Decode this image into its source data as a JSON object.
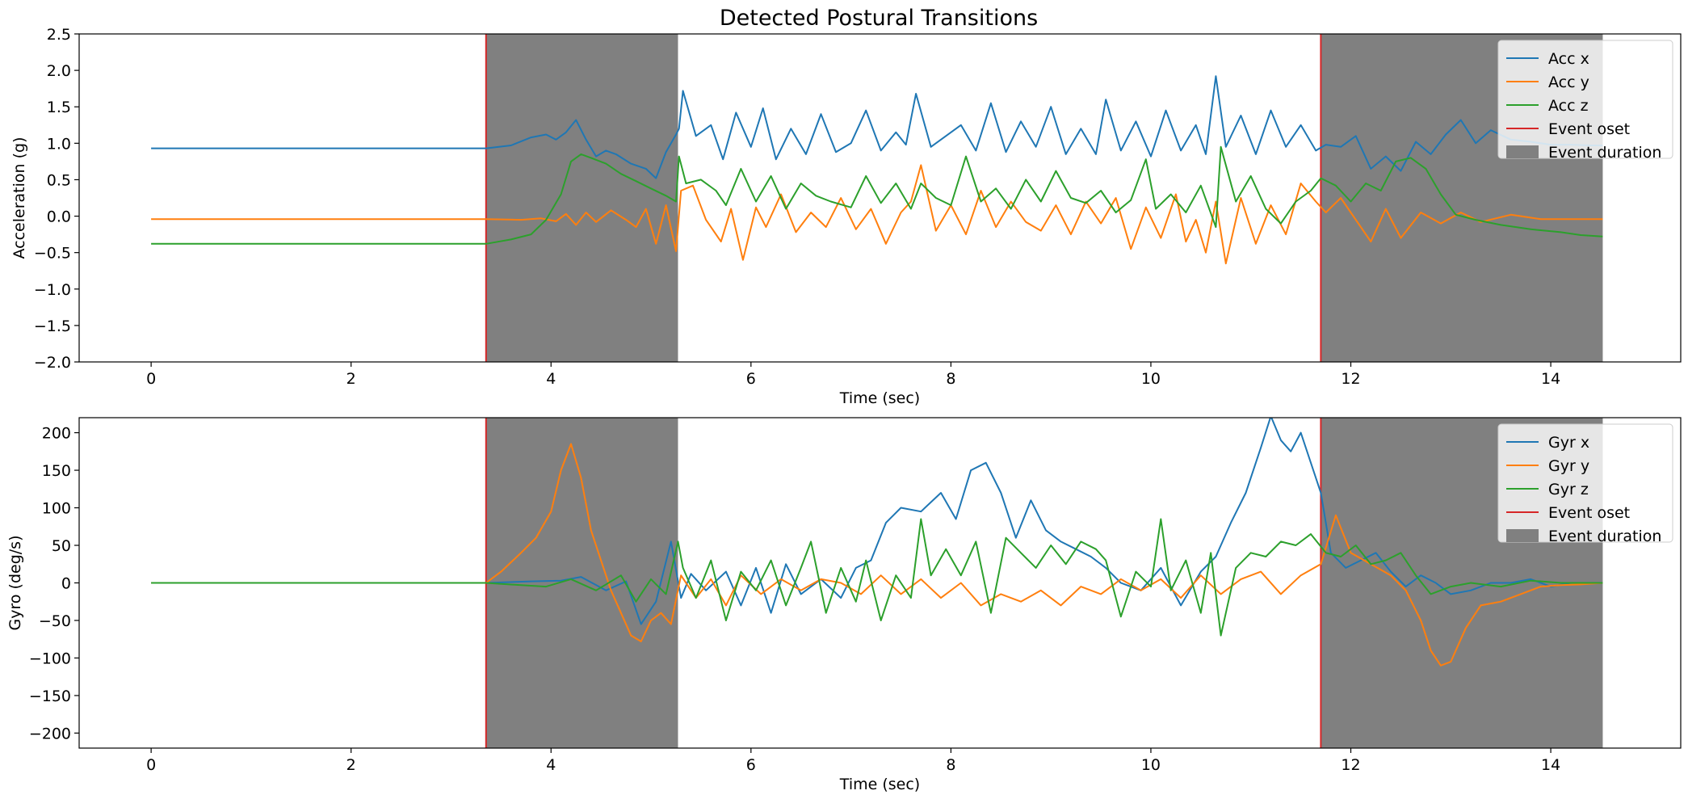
{
  "figure": {
    "title": "Detected Postural Transitions"
  },
  "colors": {
    "x": "#1f77b4",
    "y": "#ff7f0e",
    "z": "#2ca02c",
    "onset": "#d62728",
    "duration": "#808080"
  },
  "chart_data": [
    {
      "type": "line",
      "title": "Detected Postural Transitions",
      "xlabel": "Time (sec)",
      "ylabel": "Acceleration (g)",
      "xlim": [
        -0.72,
        15.3
      ],
      "ylim": [
        -2.0,
        2.5
      ],
      "xticks": [
        0,
        2,
        4,
        6,
        8,
        10,
        12,
        14
      ],
      "xtick_labels": [
        "0",
        "2",
        "4",
        "6",
        "8",
        "10",
        "12",
        "14"
      ],
      "yticks": [
        -2.0,
        -1.5,
        -1.0,
        -0.5,
        0.0,
        0.5,
        1.0,
        1.5,
        2.0,
        2.5
      ],
      "ytick_labels": [
        "−2.0",
        "−1.5",
        "−1.0",
        "−0.5",
        "0.0",
        "0.5",
        "1.0",
        "1.5",
        "2.0",
        "2.5"
      ],
      "grid": false,
      "legend_position": "top-right",
      "legend": [
        "Acc x",
        "Acc y",
        "Acc z",
        "Event oset",
        "Event duration"
      ],
      "events": [
        {
          "onset": 3.35,
          "end": 5.27
        },
        {
          "onset": 11.7,
          "end": 14.52
        }
      ],
      "series": [
        {
          "name": "Acc x",
          "x": [
            0,
            1,
            2,
            3,
            3.35,
            3.6,
            3.8,
            3.95,
            4.05,
            4.15,
            4.25,
            4.35,
            4.45,
            4.55,
            4.65,
            4.8,
            4.95,
            5.05,
            5.15,
            5.25,
            5.28,
            5.32,
            5.45,
            5.6,
            5.72,
            5.85,
            6.0,
            6.12,
            6.25,
            6.4,
            6.55,
            6.7,
            6.85,
            7.0,
            7.15,
            7.3,
            7.45,
            7.55,
            7.65,
            7.8,
            7.95,
            8.1,
            8.25,
            8.4,
            8.55,
            8.7,
            8.85,
            9.0,
            9.15,
            9.3,
            9.45,
            9.55,
            9.7,
            9.85,
            10.0,
            10.15,
            10.3,
            10.45,
            10.55,
            10.65,
            10.75,
            10.9,
            11.05,
            11.2,
            11.35,
            11.5,
            11.65,
            11.75,
            11.9,
            12.05,
            12.2,
            12.35,
            12.5,
            12.65,
            12.8,
            12.95,
            13.1,
            13.25,
            13.4,
            13.6,
            13.8,
            14.0,
            14.2,
            14.4,
            14.52
          ],
          "y": [
            0.93,
            0.93,
            0.93,
            0.93,
            0.93,
            0.97,
            1.08,
            1.12,
            1.05,
            1.15,
            1.32,
            1.05,
            0.82,
            0.9,
            0.85,
            0.72,
            0.65,
            0.52,
            0.88,
            1.12,
            1.2,
            1.72,
            1.1,
            1.25,
            0.78,
            1.42,
            0.95,
            1.48,
            0.78,
            1.2,
            0.85,
            1.4,
            0.88,
            1.0,
            1.45,
            0.9,
            1.15,
            0.98,
            1.68,
            0.95,
            1.1,
            1.25,
            0.9,
            1.55,
            0.88,
            1.3,
            0.95,
            1.5,
            0.85,
            1.2,
            0.85,
            1.6,
            0.9,
            1.3,
            0.82,
            1.45,
            0.9,
            1.25,
            0.85,
            1.92,
            0.95,
            1.38,
            0.85,
            1.45,
            0.95,
            1.25,
            0.9,
            0.98,
            0.95,
            1.1,
            0.65,
            0.82,
            0.62,
            1.02,
            0.85,
            1.12,
            1.32,
            1.0,
            1.18,
            1.05,
            1.02,
            0.98,
            0.98,
            0.97,
            0.97
          ]
        },
        {
          "name": "Acc y",
          "x": [
            0,
            1,
            2,
            3,
            3.35,
            3.7,
            3.9,
            4.05,
            4.15,
            4.25,
            4.35,
            4.45,
            4.6,
            4.75,
            4.85,
            4.95,
            5.05,
            5.15,
            5.25,
            5.3,
            5.42,
            5.55,
            5.7,
            5.8,
            5.92,
            6.05,
            6.15,
            6.3,
            6.45,
            6.6,
            6.75,
            6.9,
            7.05,
            7.2,
            7.35,
            7.5,
            7.6,
            7.7,
            7.85,
            8.0,
            8.15,
            8.3,
            8.45,
            8.6,
            8.75,
            8.9,
            9.05,
            9.2,
            9.35,
            9.5,
            9.65,
            9.8,
            9.95,
            10.1,
            10.25,
            10.35,
            10.45,
            10.55,
            10.65,
            10.75,
            10.9,
            11.05,
            11.2,
            11.35,
            11.5,
            11.65,
            11.75,
            11.9,
            12.05,
            12.2,
            12.35,
            12.5,
            12.7,
            12.9,
            13.1,
            13.3,
            13.6,
            13.9,
            14.2,
            14.52
          ],
          "y": [
            -0.04,
            -0.04,
            -0.04,
            -0.04,
            -0.04,
            -0.05,
            -0.03,
            -0.07,
            0.03,
            -0.12,
            0.05,
            -0.08,
            0.08,
            -0.05,
            -0.15,
            0.1,
            -0.38,
            0.15,
            -0.48,
            0.35,
            0.42,
            -0.05,
            -0.35,
            0.1,
            -0.6,
            0.12,
            -0.15,
            0.3,
            -0.22,
            0.05,
            -0.15,
            0.25,
            -0.18,
            0.1,
            -0.38,
            0.05,
            0.2,
            0.7,
            -0.2,
            0.15,
            -0.25,
            0.35,
            -0.15,
            0.2,
            -0.08,
            -0.2,
            0.15,
            -0.25,
            0.2,
            -0.1,
            0.25,
            -0.45,
            0.12,
            -0.3,
            0.3,
            -0.35,
            -0.05,
            -0.5,
            0.2,
            -0.65,
            0.25,
            -0.38,
            0.15,
            -0.25,
            0.45,
            0.2,
            0.05,
            0.25,
            -0.05,
            -0.35,
            0.1,
            -0.3,
            0.05,
            -0.1,
            0.05,
            -0.08,
            0.02,
            -0.04,
            -0.04,
            -0.04
          ]
        },
        {
          "name": "Acc z",
          "x": [
            0,
            1,
            2,
            3,
            3.35,
            3.6,
            3.8,
            3.95,
            4.1,
            4.2,
            4.3,
            4.4,
            4.55,
            4.7,
            4.85,
            5.0,
            5.15,
            5.25,
            5.28,
            5.35,
            5.5,
            5.65,
            5.75,
            5.9,
            6.05,
            6.2,
            6.35,
            6.5,
            6.65,
            6.8,
            7.0,
            7.15,
            7.3,
            7.45,
            7.6,
            7.7,
            7.85,
            8.0,
            8.15,
            8.3,
            8.45,
            8.6,
            8.75,
            8.9,
            9.05,
            9.2,
            9.35,
            9.5,
            9.65,
            9.8,
            9.95,
            10.05,
            10.2,
            10.35,
            10.5,
            10.65,
            10.7,
            10.85,
            11.0,
            11.15,
            11.3,
            11.45,
            11.6,
            11.7,
            11.85,
            12.0,
            12.15,
            12.3,
            12.45,
            12.6,
            12.75,
            12.9,
            13.05,
            13.25,
            13.5,
            13.8,
            14.1,
            14.3,
            14.52
          ],
          "y": [
            -0.38,
            -0.38,
            -0.38,
            -0.38,
            -0.38,
            -0.32,
            -0.25,
            -0.05,
            0.3,
            0.75,
            0.85,
            0.8,
            0.72,
            0.58,
            0.48,
            0.38,
            0.28,
            0.2,
            0.82,
            0.45,
            0.5,
            0.35,
            0.15,
            0.65,
            0.2,
            0.55,
            0.1,
            0.45,
            0.28,
            0.2,
            0.12,
            0.55,
            0.18,
            0.45,
            0.1,
            0.45,
            0.25,
            0.15,
            0.82,
            0.2,
            0.38,
            0.1,
            0.5,
            0.2,
            0.62,
            0.25,
            0.18,
            0.35,
            0.05,
            0.22,
            0.78,
            0.1,
            0.3,
            0.05,
            0.42,
            -0.15,
            0.95,
            0.2,
            0.55,
            0.1,
            -0.1,
            0.2,
            0.35,
            0.52,
            0.42,
            0.2,
            0.45,
            0.35,
            0.75,
            0.8,
            0.65,
            0.3,
            0.02,
            -0.05,
            -0.12,
            -0.18,
            -0.22,
            -0.26,
            -0.28
          ]
        }
      ]
    },
    {
      "type": "line",
      "title": "",
      "xlabel": "Time (sec)",
      "ylabel": "Gyro (deg/s)",
      "xlim": [
        -0.72,
        15.3
      ],
      "ylim": [
        -220,
        220
      ],
      "xticks": [
        0,
        2,
        4,
        6,
        8,
        10,
        12,
        14
      ],
      "xtick_labels": [
        "0",
        "2",
        "4",
        "6",
        "8",
        "10",
        "12",
        "14"
      ],
      "yticks": [
        -200,
        -150,
        -100,
        -50,
        0,
        50,
        100,
        150,
        200
      ],
      "ytick_labels": [
        "−200",
        "−150",
        "−100",
        "−50",
        "0",
        "50",
        "100",
        "150",
        "200"
      ],
      "grid": false,
      "legend_position": "top-right",
      "legend": [
        "Gyr x",
        "Gyr y",
        "Gyr z",
        "Event oset",
        "Event duration"
      ],
      "events": [
        {
          "onset": 3.35,
          "end": 5.27
        },
        {
          "onset": 11.7,
          "end": 14.52
        }
      ],
      "series": [
        {
          "name": "Gyr x",
          "x": [
            0,
            1,
            2,
            3,
            3.35,
            3.8,
            4.1,
            4.3,
            4.55,
            4.75,
            4.9,
            5.05,
            5.2,
            5.3,
            5.4,
            5.55,
            5.75,
            5.9,
            6.05,
            6.2,
            6.35,
            6.5,
            6.7,
            6.9,
            7.05,
            7.2,
            7.35,
            7.5,
            7.7,
            7.9,
            8.05,
            8.2,
            8.35,
            8.5,
            8.65,
            8.8,
            8.95,
            9.1,
            9.25,
            9.4,
            9.55,
            9.7,
            9.9,
            10.1,
            10.3,
            10.5,
            10.65,
            10.8,
            10.95,
            11.1,
            11.2,
            11.3,
            11.4,
            11.5,
            11.6,
            11.7,
            11.8,
            11.95,
            12.1,
            12.25,
            12.4,
            12.55,
            12.7,
            12.85,
            13.0,
            13.2,
            13.4,
            13.6,
            13.8,
            14.0,
            14.2,
            14.52
          ],
          "y": [
            0,
            0,
            0,
            0,
            0,
            2,
            3,
            8,
            -10,
            2,
            -55,
            -25,
            55,
            -20,
            12,
            -10,
            15,
            -30,
            20,
            -40,
            25,
            -15,
            5,
            -20,
            20,
            30,
            80,
            100,
            95,
            120,
            85,
            150,
            160,
            120,
            60,
            110,
            70,
            55,
            45,
            35,
            20,
            0,
            -10,
            20,
            -30,
            15,
            35,
            80,
            120,
            180,
            222,
            190,
            175,
            200,
            160,
            120,
            40,
            20,
            30,
            40,
            15,
            -5,
            10,
            0,
            -15,
            -10,
            0,
            0,
            5,
            -5,
            0,
            0
          ]
        },
        {
          "name": "Gyr y",
          "x": [
            0,
            1,
            2,
            3,
            3.35,
            3.5,
            3.7,
            3.85,
            4.0,
            4.1,
            4.2,
            4.3,
            4.4,
            4.5,
            4.6,
            4.7,
            4.8,
            4.9,
            5.0,
            5.1,
            5.2,
            5.3,
            5.45,
            5.6,
            5.75,
            5.9,
            6.1,
            6.3,
            6.5,
            6.7,
            6.9,
            7.1,
            7.3,
            7.5,
            7.7,
            7.9,
            8.1,
            8.3,
            8.5,
            8.7,
            8.9,
            9.1,
            9.3,
            9.5,
            9.7,
            9.9,
            10.1,
            10.3,
            10.5,
            10.7,
            10.9,
            11.1,
            11.3,
            11.5,
            11.7,
            11.85,
            12.0,
            12.2,
            12.4,
            12.55,
            12.7,
            12.8,
            12.9,
            13.0,
            13.15,
            13.3,
            13.5,
            13.7,
            13.9,
            14.1,
            14.3,
            14.52
          ],
          "y": [
            0,
            0,
            0,
            0,
            0,
            15,
            40,
            60,
            95,
            150,
            185,
            140,
            70,
            30,
            -10,
            -40,
            -70,
            -78,
            -50,
            -40,
            -55,
            10,
            -20,
            5,
            -30,
            10,
            -15,
            5,
            -10,
            5,
            0,
            -15,
            10,
            -15,
            5,
            -20,
            0,
            -30,
            -15,
            -25,
            -10,
            -30,
            -5,
            -15,
            5,
            -10,
            5,
            -20,
            10,
            -15,
            5,
            15,
            -15,
            10,
            25,
            90,
            40,
            25,
            10,
            -10,
            -50,
            -90,
            -110,
            -105,
            -60,
            -30,
            -25,
            -15,
            -5,
            -3,
            -2,
            0
          ]
        },
        {
          "name": "Gyr z",
          "x": [
            0,
            1,
            2,
            3,
            3.35,
            3.7,
            3.95,
            4.2,
            4.45,
            4.7,
            4.85,
            5.0,
            5.15,
            5.27,
            5.32,
            5.45,
            5.6,
            5.75,
            5.9,
            6.05,
            6.2,
            6.35,
            6.5,
            6.6,
            6.75,
            6.9,
            7.05,
            7.15,
            7.3,
            7.45,
            7.6,
            7.7,
            7.8,
            7.95,
            8.1,
            8.25,
            8.4,
            8.55,
            8.7,
            8.85,
            9.0,
            9.15,
            9.3,
            9.45,
            9.55,
            9.7,
            9.85,
            10.0,
            10.1,
            10.2,
            10.35,
            10.5,
            10.6,
            10.7,
            10.85,
            11.0,
            11.15,
            11.3,
            11.45,
            11.6,
            11.75,
            11.9,
            12.05,
            12.2,
            12.35,
            12.5,
            12.65,
            12.8,
            13.0,
            13.2,
            13.5,
            13.8,
            14.1,
            14.52
          ],
          "y": [
            0,
            0,
            0,
            0,
            0,
            -3,
            -5,
            5,
            -10,
            10,
            -25,
            5,
            -15,
            55,
            20,
            -20,
            30,
            -50,
            15,
            -10,
            30,
            -30,
            20,
            55,
            -40,
            20,
            -25,
            30,
            -50,
            10,
            -20,
            85,
            10,
            45,
            10,
            55,
            -40,
            60,
            40,
            20,
            50,
            25,
            55,
            45,
            30,
            -45,
            15,
            -5,
            85,
            -10,
            30,
            -40,
            40,
            -70,
            20,
            40,
            35,
            55,
            50,
            65,
            40,
            35,
            50,
            25,
            30,
            40,
            10,
            -15,
            -5,
            0,
            -5,
            3,
            0,
            0
          ]
        }
      ]
    }
  ]
}
